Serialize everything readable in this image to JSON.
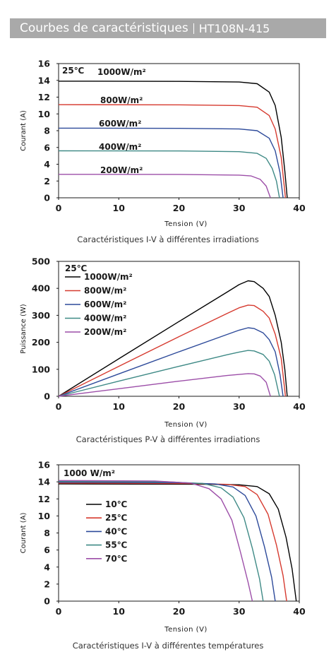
{
  "header": {
    "title": "Courbes de caractéristiques",
    "model": "HT108N-415",
    "background": "#a9a9a9"
  },
  "chart_data": [
    {
      "type": "line",
      "caption": "Caractéristiques I-V à différentes irradiations",
      "xlabel": "Tension (V)",
      "ylabel": "Courant (A)",
      "xlim": [
        0,
        40
      ],
      "ylim": [
        0,
        16
      ],
      "xticks": [
        0,
        10,
        20,
        30,
        40
      ],
      "yticks": [
        0,
        2,
        4,
        6,
        8,
        10,
        12,
        14,
        16
      ],
      "grid": false,
      "temperature_label": "25℃",
      "series": [
        {
          "name": "1000W/m²",
          "color": "#000000",
          "isc": 13.9,
          "voc": 38.0,
          "points": [
            [
              0,
              13.9
            ],
            [
              20,
              13.88
            ],
            [
              30,
              13.8
            ],
            [
              33,
              13.6
            ],
            [
              35,
              12.6
            ],
            [
              36,
              11.0
            ],
            [
              37,
              7.2
            ],
            [
              37.6,
              3.2
            ],
            [
              38.0,
              0
            ]
          ]
        },
        {
          "name": "800W/m²",
          "color": "#d63a2f",
          "isc": 11.1,
          "voc": 37.7,
          "points": [
            [
              0,
              11.1
            ],
            [
              20,
              11.08
            ],
            [
              30,
              11.0
            ],
            [
              33,
              10.8
            ],
            [
              35,
              9.8
            ],
            [
              36,
              8.2
            ],
            [
              37,
              4.8
            ],
            [
              37.7,
              0
            ]
          ]
        },
        {
          "name": "600W/m²",
          "color": "#2d4a9a",
          "isc": 8.3,
          "voc": 37.3,
          "points": [
            [
              0,
              8.3
            ],
            [
              20,
              8.28
            ],
            [
              30,
              8.2
            ],
            [
              33,
              8.0
            ],
            [
              35,
              7.1
            ],
            [
              36,
              5.6
            ],
            [
              36.8,
              3.0
            ],
            [
              37.3,
              0
            ]
          ]
        },
        {
          "name": "400W/m²",
          "color": "#3f8a86",
          "isc": 5.6,
          "voc": 36.7,
          "points": [
            [
              0,
              5.6
            ],
            [
              20,
              5.58
            ],
            [
              30,
              5.5
            ],
            [
              33,
              5.3
            ],
            [
              34.5,
              4.7
            ],
            [
              35.5,
              3.5
            ],
            [
              36.2,
              2.0
            ],
            [
              36.7,
              0
            ]
          ]
        },
        {
          "name": "200W/m²",
          "color": "#9c4ea8",
          "isc": 2.8,
          "voc": 35.2,
          "points": [
            [
              0,
              2.8
            ],
            [
              20,
              2.79
            ],
            [
              30,
              2.7
            ],
            [
              32,
              2.6
            ],
            [
              33.5,
              2.2
            ],
            [
              34.5,
              1.4
            ],
            [
              35.2,
              0
            ]
          ]
        }
      ]
    },
    {
      "type": "line",
      "caption": "Caractéristiques P-V à différentes irradiations",
      "xlabel": "Tension (V)",
      "ylabel": "Puissance (W)",
      "xlim": [
        0,
        40
      ],
      "ylim": [
        0,
        500
      ],
      "xticks": [
        0,
        10,
        20,
        30,
        40
      ],
      "yticks": [
        0,
        100,
        200,
        300,
        400,
        500
      ],
      "grid": false,
      "temperature_label": "25℃",
      "series": [
        {
          "name": "1000W/m²",
          "color": "#000000",
          "points": [
            [
              0,
              0
            ],
            [
              10,
              139
            ],
            [
              20,
              277
            ],
            [
              28,
              386
            ],
            [
              30,
              414
            ],
            [
              31.5,
              428
            ],
            [
              32.5,
              425
            ],
            [
              34,
              400
            ],
            [
              35,
              370
            ],
            [
              36,
              300
            ],
            [
              37,
              200
            ],
            [
              37.6,
              100
            ],
            [
              38.0,
              0
            ]
          ]
        },
        {
          "name": "800W/m²",
          "color": "#d63a2f",
          "points": [
            [
              0,
              0
            ],
            [
              10,
              111
            ],
            [
              20,
              221
            ],
            [
              28,
              307
            ],
            [
              30,
              328
            ],
            [
              31.5,
              338
            ],
            [
              32.5,
              336
            ],
            [
              34,
              315
            ],
            [
              35,
              290
            ],
            [
              36,
              230
            ],
            [
              37,
              140
            ],
            [
              37.7,
              0
            ]
          ]
        },
        {
          "name": "600W/m²",
          "color": "#2d4a9a",
          "points": [
            [
              0,
              0
            ],
            [
              10,
              83
            ],
            [
              20,
              165
            ],
            [
              28,
              229
            ],
            [
              30,
              245
            ],
            [
              31.5,
              254
            ],
            [
              32.5,
              251
            ],
            [
              34,
              235
            ],
            [
              35,
              210
            ],
            [
              36,
              165
            ],
            [
              36.8,
              80
            ],
            [
              37.3,
              0
            ]
          ]
        },
        {
          "name": "400W/m²",
          "color": "#3f8a86",
          "points": [
            [
              0,
              0
            ],
            [
              10,
              56
            ],
            [
              20,
              111
            ],
            [
              28,
              154
            ],
            [
              30,
              164
            ],
            [
              31.5,
              170
            ],
            [
              32.5,
              168
            ],
            [
              34,
              155
            ],
            [
              35,
              130
            ],
            [
              35.9,
              80
            ],
            [
              36.7,
              0
            ]
          ]
        },
        {
          "name": "200W/m²",
          "color": "#9c4ea8",
          "points": [
            [
              0,
              0
            ],
            [
              10,
              28
            ],
            [
              20,
              56
            ],
            [
              28,
              77
            ],
            [
              30,
              81
            ],
            [
              31.5,
              84
            ],
            [
              32.5,
              83
            ],
            [
              33.5,
              75
            ],
            [
              34.5,
              52
            ],
            [
              35.2,
              0
            ]
          ]
        }
      ]
    },
    {
      "type": "line",
      "caption": "Caractéristiques I-V à différentes températures",
      "xlabel": "Tension (V)",
      "ylabel": "Courant (A)",
      "xlim": [
        0,
        40
      ],
      "ylim": [
        0,
        16
      ],
      "xticks": [
        0,
        10,
        20,
        30,
        40
      ],
      "yticks": [
        0,
        2,
        4,
        6,
        8,
        10,
        12,
        14,
        16
      ],
      "grid": false,
      "irradiance_label": "1000 W/m²",
      "series": [
        {
          "name": "10℃",
          "color": "#000000",
          "points": [
            [
              0,
              13.75
            ],
            [
              25,
              13.72
            ],
            [
              30,
              13.65
            ],
            [
              33,
              13.45
            ],
            [
              35,
              12.6
            ],
            [
              36.5,
              10.8
            ],
            [
              37.8,
              7.5
            ],
            [
              38.8,
              3.8
            ],
            [
              39.5,
              0
            ]
          ]
        },
        {
          "name": "25℃",
          "color": "#d63a2f",
          "points": [
            [
              0,
              13.85
            ],
            [
              22,
              13.8
            ],
            [
              28,
              13.7
            ],
            [
              31,
              13.45
            ],
            [
              33,
              12.5
            ],
            [
              34.8,
              10.2
            ],
            [
              36.2,
              6.6
            ],
            [
              37.3,
              3.0
            ],
            [
              37.9,
              0
            ]
          ]
        },
        {
          "name": "40℃",
          "color": "#2d4a9a",
          "points": [
            [
              0,
              13.95
            ],
            [
              20,
              13.9
            ],
            [
              26,
              13.75
            ],
            [
              29,
              13.4
            ],
            [
              31,
              12.4
            ],
            [
              32.8,
              10.0
            ],
            [
              34.2,
              6.4
            ],
            [
              35.4,
              2.8
            ],
            [
              36.0,
              0
            ]
          ]
        },
        {
          "name": "55℃",
          "color": "#3f8a86",
          "points": [
            [
              0,
              14.05
            ],
            [
              18,
              14.0
            ],
            [
              24,
              13.8
            ],
            [
              27,
              13.3
            ],
            [
              29,
              12.2
            ],
            [
              30.8,
              9.8
            ],
            [
              32.2,
              6.2
            ],
            [
              33.4,
              2.6
            ],
            [
              34.0,
              0
            ]
          ]
        },
        {
          "name": "70℃",
          "color": "#9c4ea8",
          "points": [
            [
              0,
              14.15
            ],
            [
              16,
              14.1
            ],
            [
              22,
              13.85
            ],
            [
              25,
              13.2
            ],
            [
              27,
              12.0
            ],
            [
              28.8,
              9.5
            ],
            [
              30.2,
              5.8
            ],
            [
              31.5,
              2.2
            ],
            [
              32.2,
              0
            ]
          ]
        }
      ]
    }
  ]
}
